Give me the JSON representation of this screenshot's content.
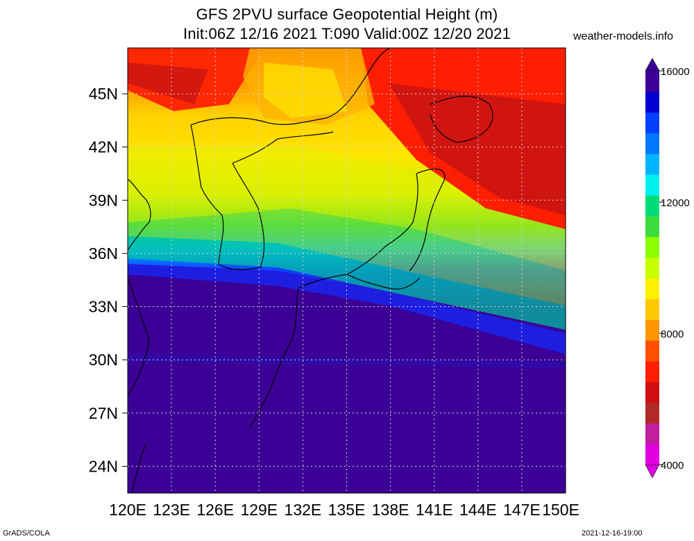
{
  "title": {
    "line1": "GFS 2PVU surface Geopotential Height (m)",
    "line2": "Init:06Z 12/16 2021 T:090 Valid:00Z 12/20 2021"
  },
  "site_label": "weather-models.info",
  "footer": {
    "left": "GrADS/COLA",
    "right": "2021-12-16-19:00"
  },
  "map": {
    "lat_labels": [
      "45N",
      "42N",
      "39N",
      "36N",
      "33N",
      "30N",
      "27N",
      "24N"
    ],
    "lat_values": [
      45,
      42,
      39,
      36,
      33,
      30,
      27,
      24
    ],
    "lon_labels": [
      "120E",
      "123E",
      "126E",
      "129E",
      "132E",
      "135E",
      "138E",
      "141E",
      "144E",
      "147E",
      "150E"
    ],
    "lon_values": [
      120,
      123,
      126,
      129,
      132,
      135,
      138,
      141,
      144,
      147,
      150
    ],
    "lat_range": [
      22.4,
      47.5
    ],
    "lon_range": [
      120,
      150
    ],
    "gridlines": "dotted"
  },
  "colorbar": {
    "labels": [
      "16000",
      "12000",
      "8000",
      "4000"
    ],
    "label_values": [
      16000,
      12000,
      8000,
      4000
    ],
    "min": 4000,
    "max": 16000,
    "colors": [
      "#e000e0",
      "#c0209e",
      "#b02a2a",
      "#d01010",
      "#ff1e00",
      "#ff5000",
      "#ff9600",
      "#ffc800",
      "#fff000",
      "#c8ff00",
      "#8cff00",
      "#3cdc3c",
      "#00dc78",
      "#00f0f0",
      "#00b4ff",
      "#0078ff",
      "#0040ff",
      "#0000d0",
      "#3c0096"
    ]
  }
}
